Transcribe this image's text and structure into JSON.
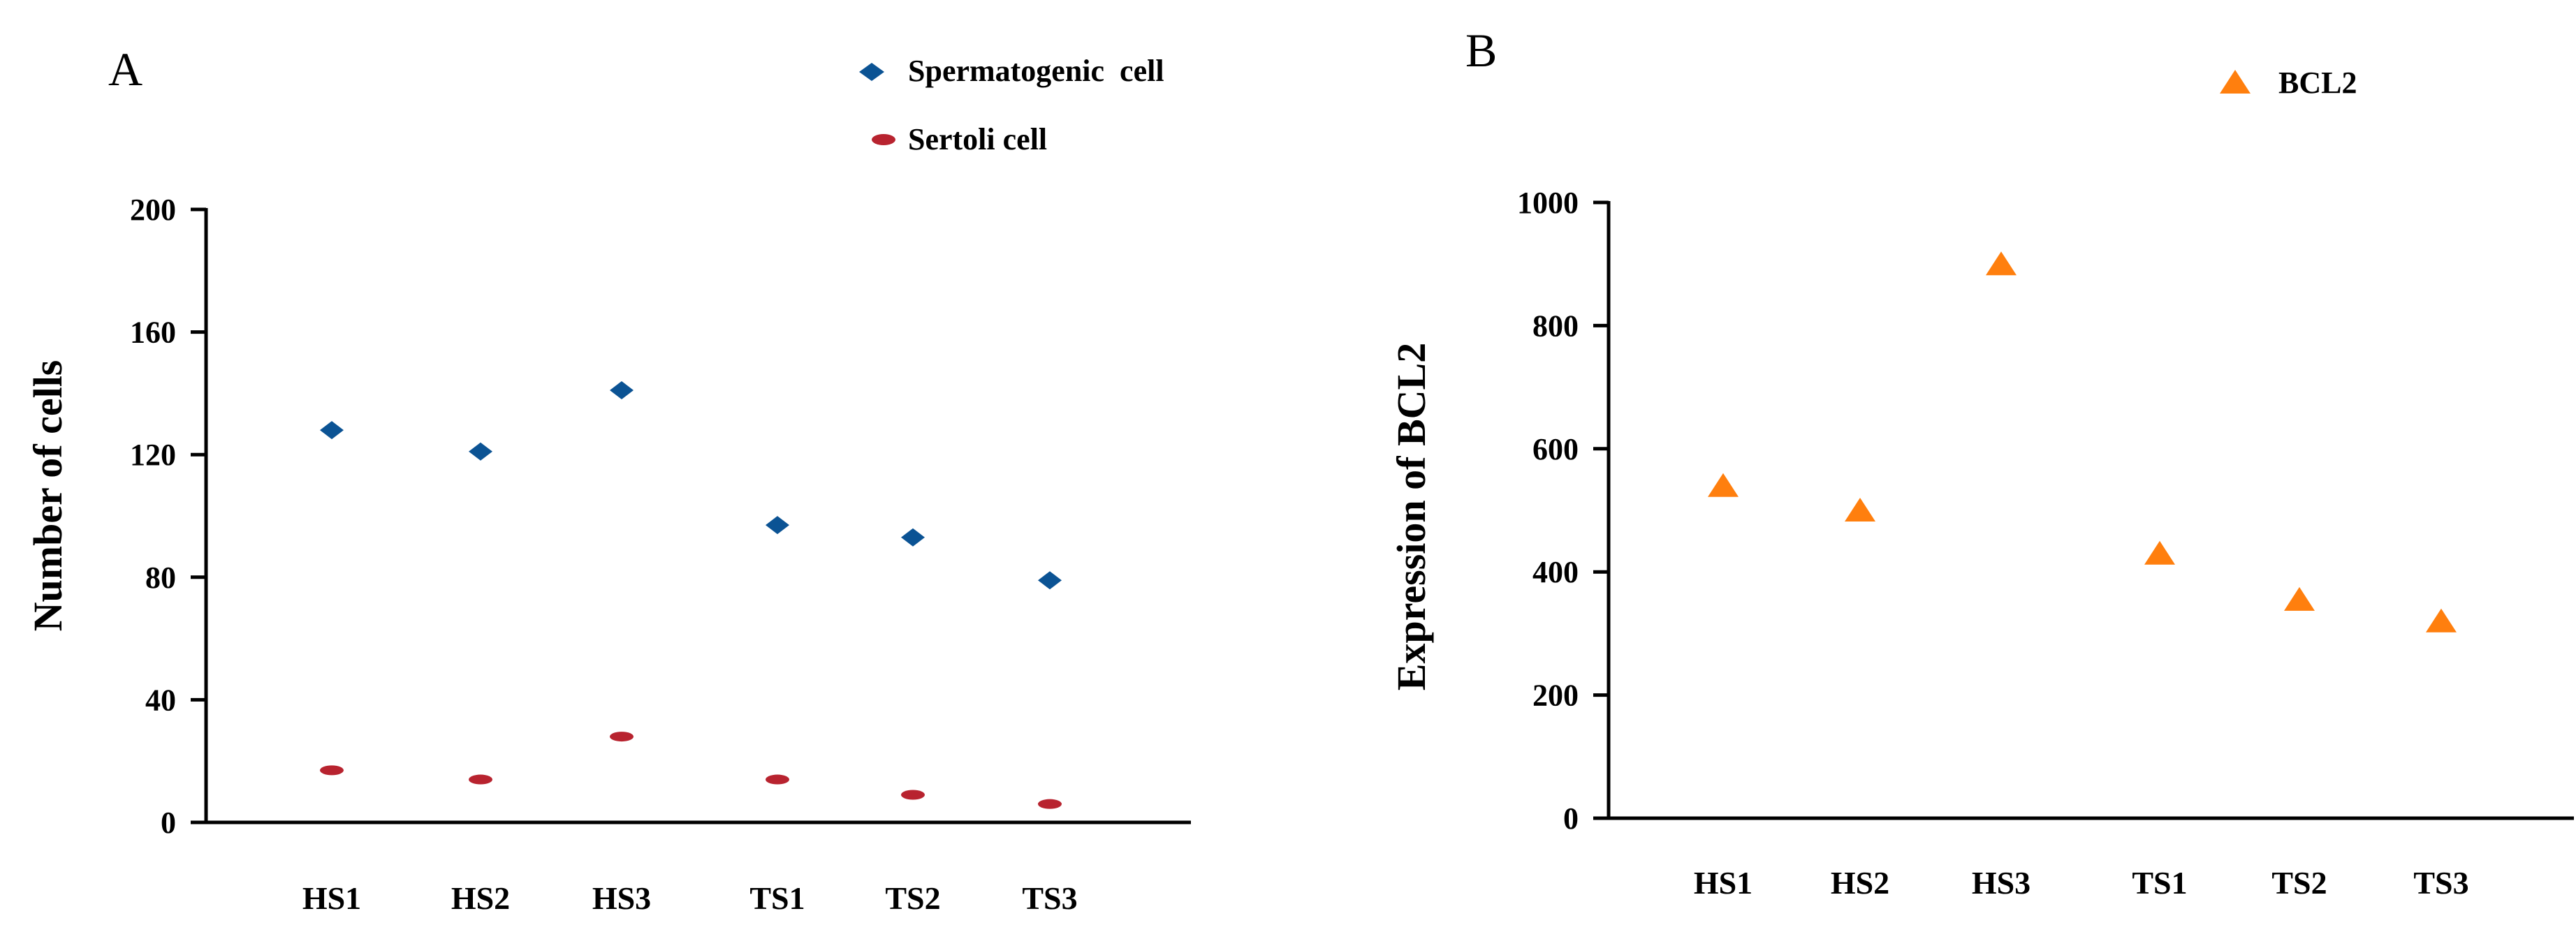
{
  "colors": {
    "axis": "#000000",
    "spermatogenic": "#0b5394",
    "sertoli": "#b8232f",
    "bcl2": "#ff7f0e"
  },
  "chart_data": [
    {
      "panel_label": "A",
      "type": "scatter",
      "title": "",
      "xlabel": "",
      "ylabel": "Number of cells",
      "categories": [
        "HS1",
        "HS2",
        "HS3",
        "TS1",
        "TS2",
        "TS3"
      ],
      "ylim": [
        0,
        200
      ],
      "yticks": [
        0,
        40,
        80,
        120,
        160,
        200
      ],
      "legend_position": "top-right",
      "series": [
        {
          "name": "Spermatogenic  cell",
          "marker": "diamond",
          "values": [
            128,
            121,
            141,
            97,
            93,
            79
          ]
        },
        {
          "name": "Sertoli cell",
          "marker": "ellipse",
          "values": [
            17,
            14,
            28,
            14,
            9,
            6
          ]
        }
      ]
    },
    {
      "panel_label": "B",
      "type": "scatter",
      "title": "",
      "xlabel": "",
      "ylabel": "Expression of BCL2",
      "categories": [
        "HS1",
        "HS2",
        "HS3",
        "TS1",
        "TS2",
        "TS3"
      ],
      "ylim": [
        0,
        1000
      ],
      "yticks": [
        0,
        200,
        400,
        600,
        800,
        1000
      ],
      "legend_position": "top-right",
      "series": [
        {
          "name": "BCL2",
          "marker": "triangle",
          "values": [
            540,
            500,
            900,
            430,
            355,
            320
          ]
        }
      ]
    }
  ]
}
